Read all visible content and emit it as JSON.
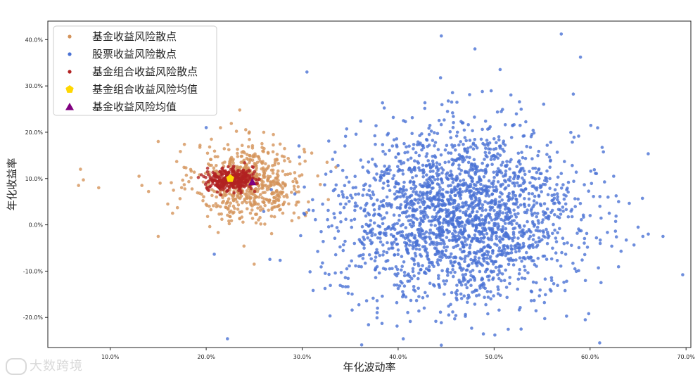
{
  "chart_data": {
    "type": "scatter",
    "title": "",
    "xlabel": "年化波动率",
    "ylabel": "年化收益率",
    "xlim": [
      0.035,
      0.705
    ],
    "ylim": [
      -0.265,
      0.44
    ],
    "x_ticks": [
      0.1,
      0.2,
      0.3,
      0.4,
      0.5,
      0.6,
      0.7
    ],
    "x_tick_labels": [
      "10.0%",
      "20.0%",
      "30.0%",
      "40.0%",
      "50.0%",
      "60.0%",
      "70.0%"
    ],
    "y_ticks": [
      -0.2,
      -0.1,
      0.0,
      0.1,
      0.2,
      0.3,
      0.4
    ],
    "y_tick_labels": [
      "-20.0%",
      "-10.0%",
      "0.0%",
      "10.0%",
      "20.0%",
      "30.0%",
      "40.0%"
    ],
    "grid": false,
    "legend_position": "top-left",
    "series": [
      {
        "name": "基金收益风险散点",
        "marker": "circle",
        "color": "#d4935a",
        "cloud": {
          "mean_x": 0.245,
          "mean_y": 0.092,
          "sd_x": 0.028,
          "sd_y": 0.042,
          "n": 620
        },
        "points": [
          [
            0.067,
            0.085
          ],
          [
            0.069,
            0.12
          ],
          [
            0.072,
            0.097
          ],
          [
            0.088,
            0.08
          ],
          [
            0.13,
            0.105
          ],
          [
            0.133,
            0.085
          ],
          [
            0.14,
            0.072
          ],
          [
            0.15,
            0.18
          ],
          [
            0.15,
            -0.025
          ],
          [
            0.152,
            0.09
          ],
          [
            0.16,
            0.045
          ],
          [
            0.165,
            0.025
          ],
          [
            0.17,
            0.037
          ],
          [
            0.235,
            0.248
          ],
          [
            0.25,
            -0.085
          ],
          [
            0.26,
            0.2
          ],
          [
            0.27,
            0.195
          ],
          [
            0.31,
            0.155
          ]
        ]
      },
      {
        "name": "股票收益风险散点",
        "marker": "circle",
        "color": "#4a72d4",
        "cloud": {
          "mean_x": 0.465,
          "mean_y": 0.02,
          "sd_x": 0.062,
          "sd_y": 0.095,
          "n": 2300
        },
        "points": [
          [
            0.2,
            0.21
          ],
          [
            0.305,
            0.33
          ],
          [
            0.445,
            0.408
          ],
          [
            0.48,
            0.38
          ],
          [
            0.57,
            0.412
          ],
          [
            0.59,
            0.362
          ],
          [
            0.445,
            -0.26
          ],
          [
            0.61,
            -0.255
          ],
          [
            0.62,
            0.025
          ],
          [
            0.65,
            -0.005
          ],
          [
            0.655,
            -0.025
          ],
          [
            0.676,
            -0.025
          ],
          [
            0.595,
            -0.205
          ],
          [
            0.33,
            0.115
          ],
          [
            0.34,
            0.045
          ]
        ]
      },
      {
        "name": "基金组合收益风险散点",
        "marker": "circle",
        "color": "#b22222",
        "cloud": {
          "mean_x": 0.225,
          "mean_y": 0.098,
          "sd_x": 0.012,
          "sd_y": 0.012,
          "n": 320
        },
        "points": []
      },
      {
        "name": "基金组合收益风险均值",
        "marker": "pentagon",
        "color": "#ffd700",
        "points": [
          [
            0.225,
            0.1
          ]
        ]
      },
      {
        "name": "基金收益风险均值",
        "marker": "triangle",
        "color": "#800080",
        "points": [
          [
            0.248,
            0.092
          ]
        ]
      }
    ]
  },
  "watermark": {
    "text": "大数跨境"
  }
}
